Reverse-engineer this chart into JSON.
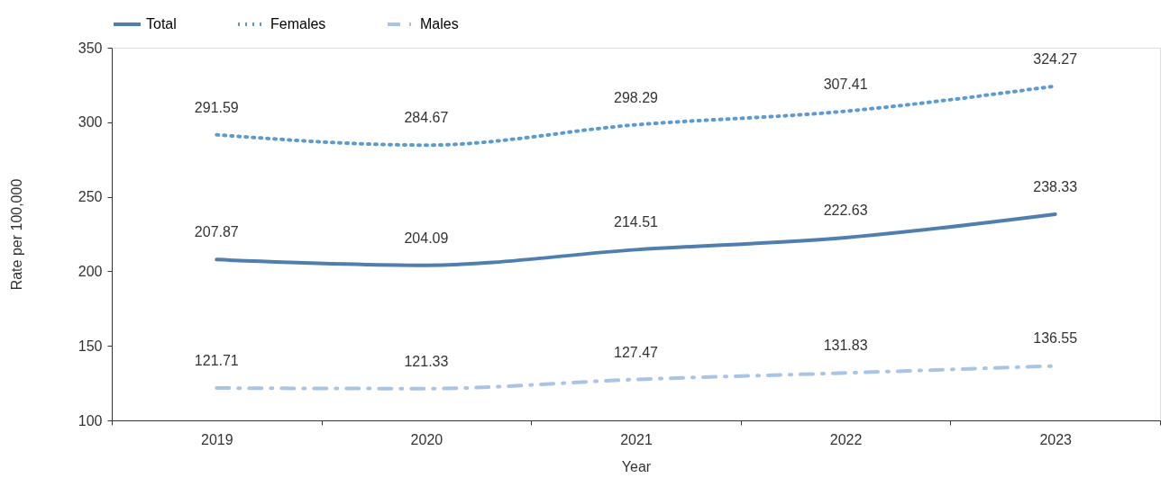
{
  "chart_data": {
    "type": "line",
    "xlabel": "Year",
    "ylabel": "Rate per 100,000",
    "categories": [
      "2019",
      "2020",
      "2021",
      "2022",
      "2023"
    ],
    "series": [
      {
        "name": "Total",
        "color": "#4e7fb0",
        "line_style": "solid",
        "values": [
          207.87,
          204.09,
          214.51,
          222.63,
          238.33
        ]
      },
      {
        "name": "Females",
        "color": "#5b9bd5",
        "line_style": "dotted",
        "values": [
          291.59,
          284.67,
          298.29,
          307.41,
          324.27
        ]
      },
      {
        "name": "Males",
        "color": "#a9c4e4",
        "line_style": "dashdot",
        "values": [
          121.71,
          121.33,
          127.47,
          131.83,
          136.55
        ]
      }
    ],
    "ylim": [
      100,
      350
    ],
    "yticks": [
      100,
      150,
      200,
      250,
      300,
      350
    ],
    "grid": false,
    "legend": "top",
    "data_labels": true,
    "marker": "none"
  }
}
